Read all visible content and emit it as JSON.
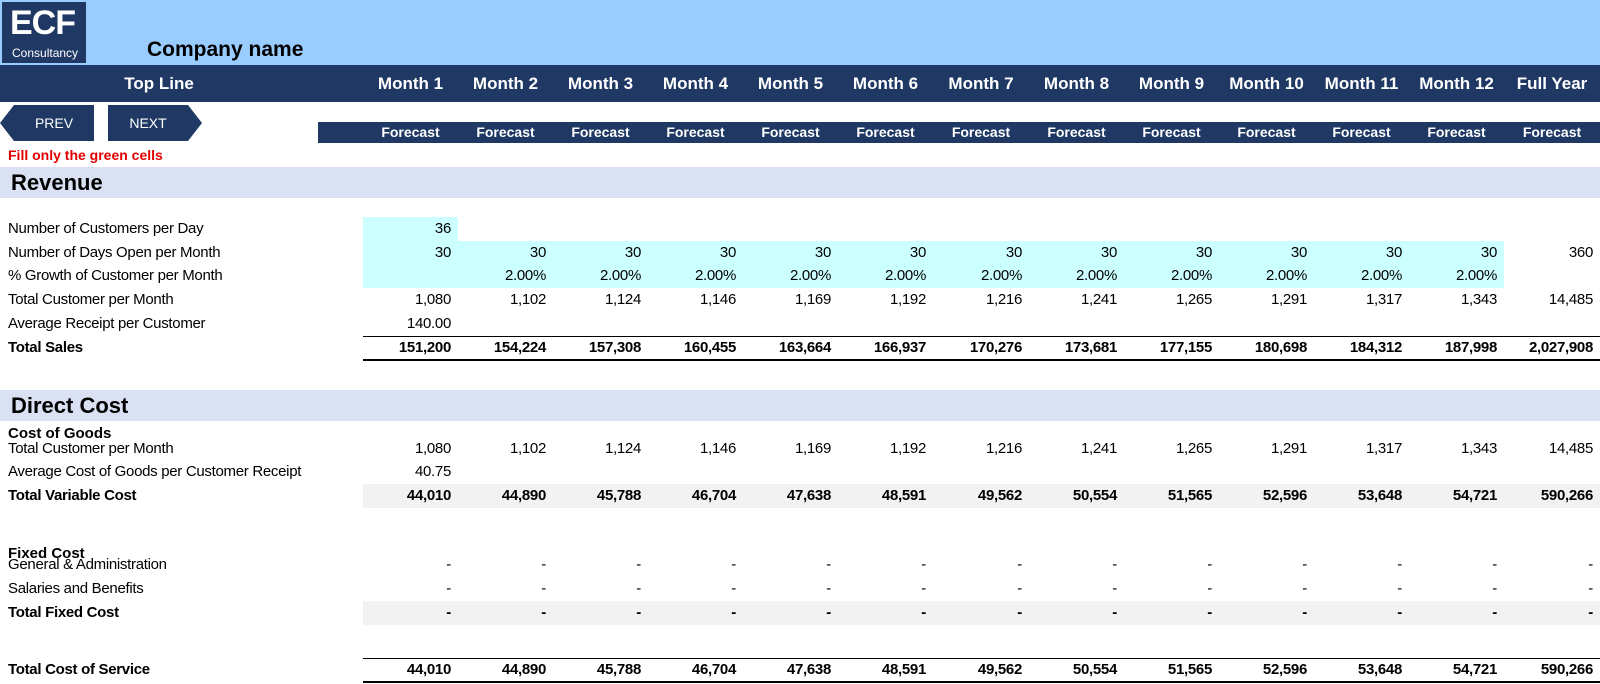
{
  "logo": {
    "big": "ECF",
    "small": "Consultancy"
  },
  "company_name": "Company name",
  "header": {
    "top_line": "Top Line",
    "months": [
      "Month 1",
      "Month 2",
      "Month 3",
      "Month 4",
      "Month 5",
      "Month 6",
      "Month 7",
      "Month 8",
      "Month 9",
      "Month 10",
      "Month 11",
      "Month 12",
      "Full Year"
    ],
    "forecast_label": "Forecast"
  },
  "nav": {
    "prev": "PREV",
    "next": "NEXT"
  },
  "note": "Fill only the green cells",
  "revenue": {
    "title": "Revenue",
    "rows": [
      {
        "label": "Number of Customers per Day",
        "values": [
          "36",
          "",
          "",
          "",
          "",
          "",
          "",
          "",
          "",
          "",
          "",
          "",
          ""
        ],
        "green": [
          1,
          0,
          0,
          0,
          0,
          0,
          0,
          0,
          0,
          0,
          0,
          0,
          0
        ],
        "bold": false
      },
      {
        "label": "Number of Days Open per Month",
        "values": [
          "30",
          "30",
          "30",
          "30",
          "30",
          "30",
          "30",
          "30",
          "30",
          "30",
          "30",
          "30",
          "360"
        ],
        "green": [
          1,
          1,
          1,
          1,
          1,
          1,
          1,
          1,
          1,
          1,
          1,
          1,
          0
        ],
        "bold": false
      },
      {
        "label": "% Growth of Customer per Month",
        "values": [
          "",
          "2.00%",
          "2.00%",
          "2.00%",
          "2.00%",
          "2.00%",
          "2.00%",
          "2.00%",
          "2.00%",
          "2.00%",
          "2.00%",
          "2.00%",
          ""
        ],
        "green": [
          1,
          1,
          1,
          1,
          1,
          1,
          1,
          1,
          1,
          1,
          1,
          1,
          0
        ],
        "bold": false
      },
      {
        "label": "Total Customer per Month",
        "values": [
          "1,080",
          "1,102",
          "1,124",
          "1,146",
          "1,169",
          "1,192",
          "1,216",
          "1,241",
          "1,265",
          "1,291",
          "1,317",
          "1,343",
          "14,485"
        ],
        "green": [
          0,
          0,
          0,
          0,
          0,
          0,
          0,
          0,
          0,
          0,
          0,
          0,
          0
        ],
        "bold": false
      },
      {
        "label": "Average Receipt per Customer",
        "values": [
          "140.00",
          "",
          "",
          "",
          "",
          "",
          "",
          "",
          "",
          "",
          "",
          "",
          ""
        ],
        "green": [
          0,
          0,
          0,
          0,
          0,
          0,
          0,
          0,
          0,
          0,
          0,
          0,
          0
        ],
        "bold": false
      },
      {
        "label": "Total Sales",
        "values": [
          "151,200",
          "154,224",
          "157,308",
          "160,455",
          "163,664",
          "166,937",
          "170,276",
          "173,681",
          "177,155",
          "180,698",
          "184,312",
          "187,998",
          "2,027,908"
        ],
        "green": [
          0,
          0,
          0,
          0,
          0,
          0,
          0,
          0,
          0,
          0,
          0,
          0,
          0
        ],
        "bold": true
      }
    ]
  },
  "direct_cost": {
    "title": "Direct Cost",
    "cost_of_goods_title": "Cost of Goods",
    "cog_rows": [
      {
        "label": "Total Customer per Month",
        "values": [
          "1,080",
          "1,102",
          "1,124",
          "1,146",
          "1,169",
          "1,192",
          "1,216",
          "1,241",
          "1,265",
          "1,291",
          "1,317",
          "1,343",
          "14,485"
        ],
        "bold": false
      },
      {
        "label": "Average Cost of Goods per Customer Receipt",
        "values": [
          "40.75",
          "",
          "",
          "",
          "",
          "",
          "",
          "",
          "",
          "",
          "",
          "",
          ""
        ],
        "bold": false
      },
      {
        "label": "Total Variable Cost",
        "values": [
          "44,010",
          "44,890",
          "45,788",
          "46,704",
          "47,638",
          "48,591",
          "49,562",
          "50,554",
          "51,565",
          "52,596",
          "53,648",
          "54,721",
          "590,266"
        ],
        "bold": true
      }
    ],
    "fixed_cost_title": "Fixed Cost",
    "fixed_rows": [
      {
        "label": "General & Administration",
        "values": [
          "-",
          "-",
          "-",
          "-",
          "-",
          "-",
          "-",
          "-",
          "-",
          "-",
          "-",
          "-",
          "-"
        ],
        "bold": false
      },
      {
        "label": "Salaries and Benefits",
        "values": [
          "-",
          "-",
          "-",
          "-",
          "-",
          "-",
          "-",
          "-",
          "-",
          "-",
          "-",
          "-",
          "-"
        ],
        "bold": false
      },
      {
        "label": "Total Fixed Cost",
        "values": [
          "-",
          "-",
          "-",
          "-",
          "-",
          "-",
          "-",
          "-",
          "-",
          "-",
          "-",
          "-",
          "-"
        ],
        "bold": true
      }
    ],
    "total_row": {
      "label": "Total Cost of Service",
      "values": [
        "44,010",
        "44,890",
        "45,788",
        "46,704",
        "47,638",
        "48,591",
        "49,562",
        "50,554",
        "51,565",
        "52,596",
        "53,648",
        "54,721",
        "590,266"
      ],
      "bold": true
    }
  }
}
